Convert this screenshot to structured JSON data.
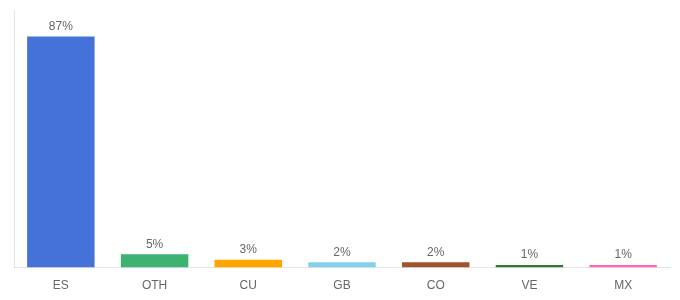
{
  "chart_data": {
    "type": "bar",
    "categories": [
      "ES",
      "OTH",
      "CU",
      "GB",
      "CO",
      "VE",
      "MX"
    ],
    "values": [
      87,
      5,
      3,
      2,
      2,
      1,
      1
    ],
    "value_labels": [
      "87%",
      "5%",
      "3%",
      "2%",
      "2%",
      "1%",
      "1%"
    ],
    "colors": [
      "#4472d9",
      "#3cb371",
      "#ffa500",
      "#87ceeb",
      "#a0522d",
      "#2d7a2d",
      "#ff69b4"
    ],
    "ylim": [
      0,
      97
    ],
    "data_labels": true,
    "tick_labels": "x",
    "grid": false
  }
}
